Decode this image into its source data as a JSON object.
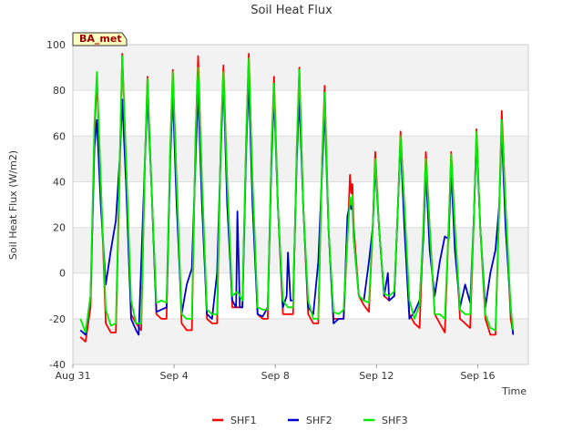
{
  "chart_data": {
    "type": "line",
    "title": "Soil Heat Flux",
    "xlabel": "Time",
    "ylabel": "Soil Heat Flux (W/m2)",
    "site_badge": "BA_met",
    "ylim": [
      -40,
      100
    ],
    "yticks": [
      -40,
      -20,
      0,
      20,
      40,
      60,
      80,
      100
    ],
    "xlim": [
      0,
      18
    ],
    "xticks": [
      {
        "value": 0,
        "label": "Aug 31"
      },
      {
        "value": 4,
        "label": "Sep 4"
      },
      {
        "value": 8,
        "label": "Sep 8"
      },
      {
        "value": 12,
        "label": "Sep 12"
      },
      {
        "value": 16,
        "label": "Sep 16"
      }
    ],
    "grid": true,
    "background_bands": true,
    "legend_position": "bottom-center",
    "series": [
      {
        "name": "SHF1",
        "color": "#ff0000",
        "points": [
          [
            0.3,
            -28
          ],
          [
            0.5,
            -30
          ],
          [
            0.7,
            -15
          ],
          [
            0.85,
            60
          ],
          [
            0.95,
            85
          ],
          [
            1.1,
            40
          ],
          [
            1.3,
            -22
          ],
          [
            1.5,
            -26
          ],
          [
            1.7,
            -26
          ],
          [
            1.85,
            45
          ],
          [
            1.95,
            96
          ],
          [
            2.1,
            50
          ],
          [
            2.3,
            -18
          ],
          [
            2.5,
            -22
          ],
          [
            2.7,
            -25
          ],
          [
            2.85,
            50
          ],
          [
            2.95,
            86
          ],
          [
            3.1,
            40
          ],
          [
            3.3,
            -18
          ],
          [
            3.5,
            -20
          ],
          [
            3.7,
            -20
          ],
          [
            3.85,
            55
          ],
          [
            3.95,
            89
          ],
          [
            4.1,
            40
          ],
          [
            4.3,
            -22
          ],
          [
            4.5,
            -25
          ],
          [
            4.7,
            -25
          ],
          [
            4.85,
            60
          ],
          [
            4.95,
            95
          ],
          [
            5.1,
            40
          ],
          [
            5.3,
            -20
          ],
          [
            5.5,
            -22
          ],
          [
            5.7,
            -22
          ],
          [
            5.85,
            60
          ],
          [
            5.95,
            91
          ],
          [
            6.1,
            40
          ],
          [
            6.3,
            -15
          ],
          [
            6.5,
            -15
          ],
          [
            6.7,
            -15
          ],
          [
            6.85,
            60
          ],
          [
            6.95,
            96
          ],
          [
            7.1,
            40
          ],
          [
            7.3,
            -18
          ],
          [
            7.5,
            -20
          ],
          [
            7.7,
            -20
          ],
          [
            7.85,
            55
          ],
          [
            7.95,
            86
          ],
          [
            8.1,
            30
          ],
          [
            8.3,
            -18
          ],
          [
            8.5,
            -18
          ],
          [
            8.7,
            -18
          ],
          [
            8.85,
            55
          ],
          [
            8.95,
            90
          ],
          [
            9.1,
            30
          ],
          [
            9.3,
            -18
          ],
          [
            9.5,
            -22
          ],
          [
            9.7,
            -22
          ],
          [
            9.85,
            50
          ],
          [
            9.95,
            82
          ],
          [
            10.1,
            20
          ],
          [
            10.3,
            -20
          ],
          [
            10.5,
            -20
          ],
          [
            10.7,
            -20
          ],
          [
            10.85,
            15
          ],
          [
            10.95,
            43
          ],
          [
            11.0,
            35
          ],
          [
            11.05,
            39
          ],
          [
            11.1,
            20
          ],
          [
            11.3,
            -10
          ],
          [
            11.5,
            -14
          ],
          [
            11.7,
            -17
          ],
          [
            11.85,
            20
          ],
          [
            11.95,
            53
          ],
          [
            12.1,
            20
          ],
          [
            12.3,
            -10
          ],
          [
            12.5,
            -12
          ],
          [
            12.7,
            -10
          ],
          [
            12.85,
            30
          ],
          [
            12.95,
            62
          ],
          [
            13.1,
            30
          ],
          [
            13.3,
            -18
          ],
          [
            13.5,
            -22
          ],
          [
            13.7,
            -24
          ],
          [
            13.85,
            20
          ],
          [
            13.95,
            53
          ],
          [
            14.1,
            20
          ],
          [
            14.3,
            -18
          ],
          [
            14.5,
            -22
          ],
          [
            14.7,
            -26
          ],
          [
            14.85,
            20
          ],
          [
            14.95,
            53
          ],
          [
            15.1,
            20
          ],
          [
            15.3,
            -20
          ],
          [
            15.5,
            -22
          ],
          [
            15.7,
            -24
          ],
          [
            15.85,
            25
          ],
          [
            15.95,
            63
          ],
          [
            16.1,
            20
          ],
          [
            16.3,
            -20
          ],
          [
            16.5,
            -27
          ],
          [
            16.7,
            -27
          ],
          [
            16.85,
            30
          ],
          [
            16.95,
            71
          ],
          [
            17.1,
            30
          ],
          [
            17.3,
            -20
          ],
          [
            17.4,
            -26
          ]
        ]
      },
      {
        "name": "SHF2",
        "color": "#0000cc",
        "points": [
          [
            0.3,
            -25
          ],
          [
            0.5,
            -27
          ],
          [
            0.7,
            -10
          ],
          [
            0.85,
            55
          ],
          [
            0.95,
            67
          ],
          [
            1.1,
            30
          ],
          [
            1.3,
            -5
          ],
          [
            1.5,
            10
          ],
          [
            1.7,
            23
          ],
          [
            1.85,
            50
          ],
          [
            1.95,
            76
          ],
          [
            2.1,
            40
          ],
          [
            2.3,
            -20
          ],
          [
            2.5,
            -25
          ],
          [
            2.6,
            -27
          ],
          [
            2.85,
            50
          ],
          [
            2.95,
            78
          ],
          [
            3.1,
            40
          ],
          [
            3.3,
            -17
          ],
          [
            3.5,
            -16
          ],
          [
            3.7,
            -15
          ],
          [
            3.85,
            50
          ],
          [
            3.95,
            79
          ],
          [
            4.1,
            30
          ],
          [
            4.3,
            -18
          ],
          [
            4.5,
            -5
          ],
          [
            4.7,
            2
          ],
          [
            4.85,
            50
          ],
          [
            4.95,
            80
          ],
          [
            5.1,
            30
          ],
          [
            5.3,
            -18
          ],
          [
            5.5,
            -20
          ],
          [
            5.7,
            0
          ],
          [
            5.85,
            55
          ],
          [
            5.95,
            85
          ],
          [
            6.1,
            30
          ],
          [
            6.3,
            -12
          ],
          [
            6.45,
            -15
          ],
          [
            6.5,
            27
          ],
          [
            6.6,
            -15
          ],
          [
            6.7,
            -15
          ],
          [
            6.85,
            55
          ],
          [
            6.95,
            85
          ],
          [
            7.1,
            30
          ],
          [
            7.3,
            -18
          ],
          [
            7.5,
            -19
          ],
          [
            7.7,
            -15
          ],
          [
            7.85,
            50
          ],
          [
            7.95,
            78
          ],
          [
            8.1,
            30
          ],
          [
            8.3,
            -15
          ],
          [
            8.45,
            -10
          ],
          [
            8.5,
            9
          ],
          [
            8.6,
            -12
          ],
          [
            8.7,
            -12
          ],
          [
            8.85,
            50
          ],
          [
            8.95,
            77
          ],
          [
            9.1,
            30
          ],
          [
            9.3,
            -15
          ],
          [
            9.5,
            -18
          ],
          [
            9.7,
            5
          ],
          [
            9.85,
            45
          ],
          [
            9.95,
            72
          ],
          [
            10.1,
            20
          ],
          [
            10.3,
            -22
          ],
          [
            10.5,
            -20
          ],
          [
            10.7,
            -20
          ],
          [
            10.85,
            25
          ],
          [
            10.95,
            30
          ],
          [
            11.0,
            28
          ],
          [
            11.05,
            30
          ],
          [
            11.1,
            15
          ],
          [
            11.3,
            -10
          ],
          [
            11.5,
            -12
          ],
          [
            11.7,
            5
          ],
          [
            11.85,
            20
          ],
          [
            11.95,
            47
          ],
          [
            12.1,
            20
          ],
          [
            12.3,
            -10
          ],
          [
            12.45,
            0
          ],
          [
            12.5,
            -12
          ],
          [
            12.7,
            -10
          ],
          [
            12.85,
            30
          ],
          [
            12.95,
            58
          ],
          [
            13.1,
            20
          ],
          [
            13.3,
            -20
          ],
          [
            13.5,
            -17
          ],
          [
            13.7,
            -12
          ],
          [
            13.85,
            15
          ],
          [
            13.95,
            45
          ],
          [
            14.1,
            10
          ],
          [
            14.3,
            -10
          ],
          [
            14.5,
            5
          ],
          [
            14.7,
            16
          ],
          [
            14.85,
            15
          ],
          [
            14.95,
            45
          ],
          [
            15.1,
            10
          ],
          [
            15.3,
            -15
          ],
          [
            15.5,
            -5
          ],
          [
            15.7,
            -13
          ],
          [
            15.85,
            25
          ],
          [
            15.95,
            59
          ],
          [
            16.1,
            20
          ],
          [
            16.3,
            -15
          ],
          [
            16.5,
            0
          ],
          [
            16.7,
            10
          ],
          [
            16.85,
            30
          ],
          [
            16.95,
            63
          ],
          [
            17.1,
            20
          ],
          [
            17.3,
            -15
          ],
          [
            17.4,
            -27
          ]
        ]
      },
      {
        "name": "SHF3",
        "color": "#00ee00",
        "points": [
          [
            0.3,
            -20
          ],
          [
            0.5,
            -26
          ],
          [
            0.7,
            -10
          ],
          [
            0.85,
            65
          ],
          [
            0.95,
            88
          ],
          [
            1.1,
            40
          ],
          [
            1.3,
            -16
          ],
          [
            1.5,
            -23
          ],
          [
            1.7,
            -22
          ],
          [
            1.85,
            50
          ],
          [
            1.95,
            95
          ],
          [
            2.1,
            50
          ],
          [
            2.3,
            -12
          ],
          [
            2.5,
            -22
          ],
          [
            2.7,
            -22
          ],
          [
            2.85,
            50
          ],
          [
            2.95,
            85
          ],
          [
            3.1,
            40
          ],
          [
            3.3,
            -13
          ],
          [
            3.5,
            -12
          ],
          [
            3.7,
            -13
          ],
          [
            3.85,
            55
          ],
          [
            3.95,
            88
          ],
          [
            4.1,
            40
          ],
          [
            4.3,
            -18
          ],
          [
            4.5,
            -20
          ],
          [
            4.7,
            -20
          ],
          [
            4.85,
            60
          ],
          [
            4.95,
            90
          ],
          [
            5.1,
            40
          ],
          [
            5.3,
            -16
          ],
          [
            5.5,
            -18
          ],
          [
            5.7,
            -18
          ],
          [
            5.85,
            60
          ],
          [
            5.95,
            88
          ],
          [
            6.1,
            40
          ],
          [
            6.3,
            -10
          ],
          [
            6.5,
            -8
          ],
          [
            6.7,
            -12
          ],
          [
            6.85,
            60
          ],
          [
            6.95,
            94
          ],
          [
            7.1,
            40
          ],
          [
            7.3,
            -15
          ],
          [
            7.5,
            -16
          ],
          [
            7.7,
            -16
          ],
          [
            7.85,
            55
          ],
          [
            7.95,
            83
          ],
          [
            8.1,
            30
          ],
          [
            8.3,
            -12
          ],
          [
            8.5,
            -15
          ],
          [
            8.7,
            -15
          ],
          [
            8.85,
            55
          ],
          [
            8.95,
            89
          ],
          [
            9.1,
            30
          ],
          [
            9.3,
            -12
          ],
          [
            9.5,
            -20
          ],
          [
            9.7,
            -20
          ],
          [
            9.85,
            50
          ],
          [
            9.95,
            79
          ],
          [
            10.1,
            20
          ],
          [
            10.3,
            -17
          ],
          [
            10.5,
            -18
          ],
          [
            10.7,
            -16
          ],
          [
            10.85,
            15
          ],
          [
            10.95,
            33
          ],
          [
            11.0,
            30
          ],
          [
            11.05,
            34
          ],
          [
            11.1,
            15
          ],
          [
            11.3,
            -10
          ],
          [
            11.5,
            -12
          ],
          [
            11.7,
            -13
          ],
          [
            11.85,
            20
          ],
          [
            11.95,
            50
          ],
          [
            12.1,
            20
          ],
          [
            12.3,
            -9
          ],
          [
            12.5,
            -10
          ],
          [
            12.7,
            -8
          ],
          [
            12.85,
            30
          ],
          [
            12.95,
            60
          ],
          [
            13.1,
            30
          ],
          [
            13.3,
            -12
          ],
          [
            13.5,
            -20
          ],
          [
            13.7,
            -14
          ],
          [
            13.85,
            20
          ],
          [
            13.95,
            50
          ],
          [
            14.1,
            20
          ],
          [
            14.3,
            -18
          ],
          [
            14.5,
            -18
          ],
          [
            14.7,
            -20
          ],
          [
            14.85,
            20
          ],
          [
            14.95,
            52
          ],
          [
            15.1,
            20
          ],
          [
            15.3,
            -16
          ],
          [
            15.5,
            -18
          ],
          [
            15.7,
            -18
          ],
          [
            15.85,
            25
          ],
          [
            15.95,
            62
          ],
          [
            16.1,
            20
          ],
          [
            16.3,
            -18
          ],
          [
            16.5,
            -24
          ],
          [
            16.7,
            -25
          ],
          [
            16.85,
            30
          ],
          [
            16.95,
            67
          ],
          [
            17.1,
            30
          ],
          [
            17.3,
            -15
          ],
          [
            17.4,
            -25
          ]
        ]
      }
    ]
  }
}
